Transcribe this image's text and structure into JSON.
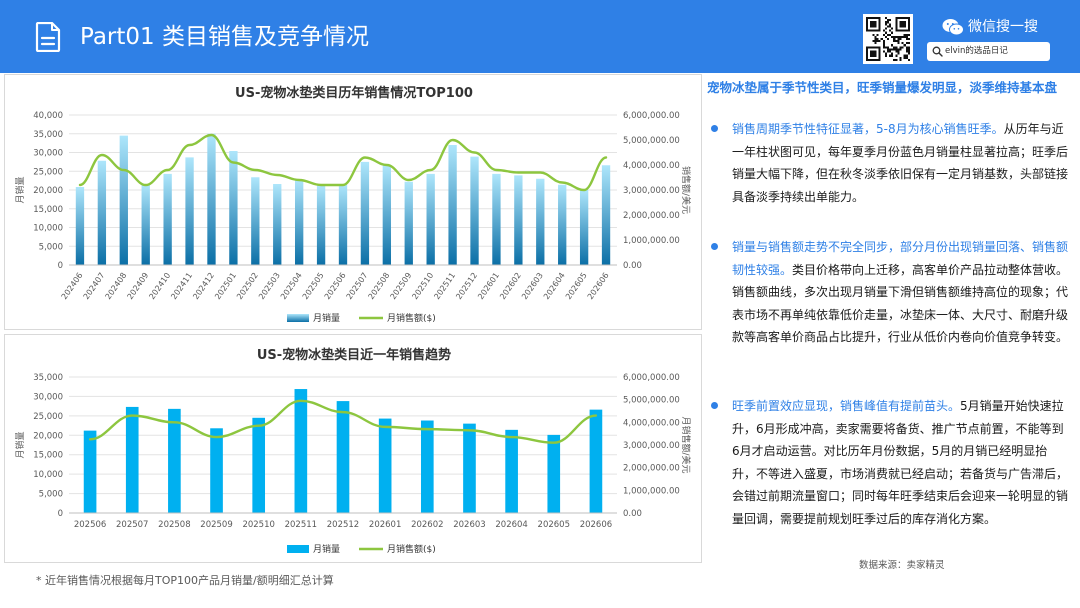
{
  "header": {
    "title": "Part01 类目销售及竞争情况",
    "wechat_label": "微信搜一搜",
    "search_text": "elvin的选品日记",
    "icons": [
      "document-icon",
      "qr-code",
      "wechat-icon",
      "search-icon"
    ],
    "background_color": "#2f80e6"
  },
  "chart_data": [
    {
      "type": "bar",
      "title": "US-宠物冰垫类目历年销售情况TOP100",
      "ylabel": "月销量",
      "y2label": "销售额/美元",
      "ylim": [
        0,
        40000
      ],
      "y2lim": [
        0,
        6000000
      ],
      "yticks": [
        "0",
        "5,000",
        "10,000",
        "15,000",
        "20,000",
        "25,000",
        "30,000",
        "35,000",
        "40,000"
      ],
      "y2ticks": [
        "0.00",
        "1,000,000.00",
        "2,000,000.00",
        "3,000,000.00",
        "4,000,000.00",
        "5,000,000.00",
        "6,000,000.00"
      ],
      "categories": [
        "202406",
        "202407",
        "202408",
        "202409",
        "202410",
        "202411",
        "202412",
        "202501",
        "202502",
        "202503",
        "202504",
        "202505",
        "202506",
        "202507",
        "202508",
        "202509",
        "202510",
        "202511",
        "202512",
        "202601",
        "202602",
        "202603",
        "202604",
        "202605",
        "202606"
      ],
      "series": [
        {
          "name": "月销量",
          "kind": "bar",
          "axis": "left",
          "color": "#17a3dc",
          "values": [
            20800,
            27800,
            34500,
            21500,
            24300,
            28700,
            35000,
            30400,
            23400,
            21600,
            22800,
            21200,
            21400,
            27500,
            26700,
            22200,
            24300,
            32000,
            28900,
            24300,
            23900,
            23000,
            21400,
            20100,
            26600
          ]
        },
        {
          "name": "月销售额($)",
          "kind": "line",
          "axis": "right",
          "color": "#8dc63f",
          "values": [
            3200000,
            4400000,
            3800000,
            3200000,
            3800000,
            4800000,
            5200000,
            4100000,
            3800000,
            3600000,
            3400000,
            3200000,
            3200000,
            4300000,
            4000000,
            3400000,
            3800000,
            5000000,
            4500000,
            3800000,
            3700000,
            3700000,
            3300000,
            3000000,
            4300000
          ]
        }
      ],
      "legend": "bottom",
      "grid": true
    },
    {
      "type": "bar",
      "title": "US-宠物冰垫类目近一年销售趋势",
      "ylabel": "月销量",
      "y2label": "月销售额/美元",
      "ylim": [
        0,
        35000
      ],
      "y2lim": [
        0,
        6000000
      ],
      "yticks": [
        "0",
        "5,000",
        "10,000",
        "15,000",
        "20,000",
        "25,000",
        "30,000",
        "35,000"
      ],
      "y2ticks": [
        "0.00",
        "1,000,000.00",
        "2,000,000.00",
        "3,000,000.00",
        "4,000,000.00",
        "5,000,000.00",
        "6,000,000.00"
      ],
      "categories": [
        "202506",
        "202507",
        "202508",
        "202509",
        "202510",
        "202511",
        "202512",
        "202601",
        "202602",
        "202603",
        "202604",
        "202605",
        "202606"
      ],
      "series": [
        {
          "name": "月销量",
          "kind": "bar",
          "axis": "left",
          "color": "#00b0f0",
          "values": [
            21200,
            27300,
            26800,
            21800,
            24500,
            31900,
            28800,
            24300,
            23800,
            23000,
            21400,
            20100,
            26600
          ]
        },
        {
          "name": "月销售额($)",
          "kind": "line",
          "axis": "right",
          "color": "#8dc63f",
          "values": [
            3250000,
            4300000,
            4000000,
            3350000,
            3850000,
            4950000,
            4450000,
            3800000,
            3700000,
            3650000,
            3350000,
            3100000,
            4300000
          ]
        }
      ],
      "legend": "bottom",
      "grid": true
    }
  ],
  "footnote": "* 近年销售情况根据每月TOP100产品月销量/额明细汇总计算",
  "analysis": {
    "headline": "宠物冰垫属于季节性类目，旺季销量爆发明显，淡季维持基本盘",
    "bullets": [
      {
        "highlight": "销售周期季节性特征显著，5-8月为核心销售旺季。",
        "text": "从历年与近一年柱状图可见，每年夏季月份蓝色月销量柱显著拉高；旺季后销量大幅下降，但在秋冬淡季依旧保有一定月销基数，头部链接具备淡季持续出单能力。"
      },
      {
        "highlight": "销量与销售额走势不完全同步，部分月份出现销量回落、销售额韧性较强。",
        "text": "类目价格带向上迁移，高客单价产品拉动整体营收。销售额曲线，多次出现月销量下滑但销售额维持高位的现象；代表市场不再单纯依靠低价走量，冰垫床一体、大尺寸、耐磨升级款等高客单价商品占比提升，行业从低价内卷向价值竞争转变。"
      },
      {
        "highlight": "旺季前置效应显现，销售峰值有提前苗头。",
        "text": "5月销量开始快速拉升，6月形成冲高，卖家需要将备货、推广节点前置，不能等到6月才启动运营。对比历年月份数据，5月的月销已经明显抬升，不等进入盛夏，市场消费就已经启动；若备货与广告滞后，会错过前期流量窗口；同时每年旺季结束后会迎来一轮明显的销量回调，需要提前规划旺季过后的库存消化方案。"
      }
    ],
    "accent_color": "#2f80e6"
  },
  "source": "数据来源：卖家精灵"
}
